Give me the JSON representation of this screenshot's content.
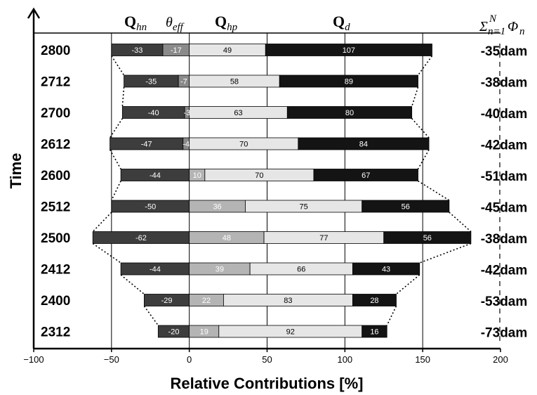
{
  "chart_data": {
    "type": "bar",
    "orientation": "horizontal-stacked",
    "xlabel": "Relative Contributions [%]",
    "ylabel": "Time",
    "xlim": [
      -100,
      200
    ],
    "x_ticks": [
      "−100",
      "−50",
      "0",
      "50",
      "100",
      "150",
      "200"
    ],
    "categories": [
      "2800",
      "2712",
      "2700",
      "2612",
      "2600",
      "2512",
      "2500",
      "2412",
      "2400",
      "2312"
    ],
    "series": [
      {
        "name": "Q_hn",
        "values": [
          -33,
          -35,
          -40,
          -47,
          -44,
          -50,
          -62,
          -44,
          -29,
          -20
        ]
      },
      {
        "name": "θ_eff",
        "values": [
          -17,
          -7,
          -3,
          -4,
          10,
          36,
          48,
          39,
          22,
          19
        ]
      },
      {
        "name": "Q_hp",
        "values": [
          49,
          58,
          63,
          70,
          70,
          75,
          77,
          66,
          83,
          92
        ]
      },
      {
        "name": "Q_d",
        "values": [
          107,
          89,
          80,
          84,
          67,
          56,
          56,
          43,
          28,
          16
        ]
      }
    ],
    "value_labels": {
      "theta_eff": [
        "-17",
        "-7",
        "-3",
        "-4",
        "10",
        "36",
        "48",
        "39",
        "22",
        "19"
      ]
    },
    "right_axis_label": "Σ_{n=1}^{N} Φ_n",
    "right_values": [
      "-35dam",
      "-38dam",
      "-40dam",
      "-42dam",
      "-51dam",
      "-45dam",
      "-38dam",
      "-42dam",
      "-53dam",
      "-73dam"
    ],
    "header": {
      "q_hn": {
        "main": "Q",
        "sub": "hn"
      },
      "theta": {
        "main": "θ",
        "sub": "eff"
      },
      "q_hp": {
        "main": "Q",
        "sub": "hp"
      },
      "q_d": {
        "main": "Q",
        "sub": "d"
      },
      "sum": {
        "sigma": "Σ",
        "lower": "n=1",
        "upper": "N",
        "phi": "Φ",
        "sub": "n"
      }
    },
    "colors": {
      "q_hn": "#3d3d3d",
      "theta_neg": "#8a8a8a",
      "theta_pos": "#b4b4b4",
      "q_hp": "#e6e6e6",
      "q_d": "#141414"
    },
    "grid": "vertical lines at −50, 0, 50, 100, 150"
  }
}
